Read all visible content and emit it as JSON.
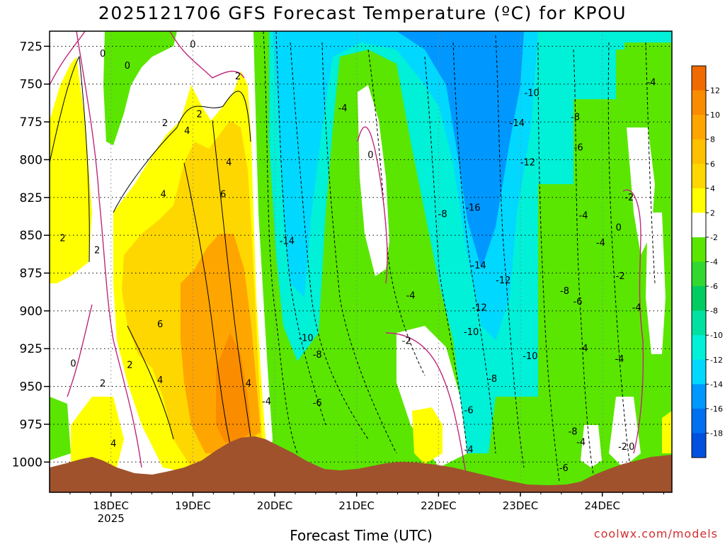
{
  "page": {
    "title": "2025121706 GFS Forecast Temperature (ºC) for KPOU",
    "xlabel": "Forecast Time (UTC)",
    "credit": "coolwx.com/models"
  },
  "chart_data": {
    "type": "heatmap",
    "title": "2025121706 GFS Forecast Temperature (ºC) for KPOU",
    "xlabel": "Forecast Time (UTC)",
    "ylabel": "",
    "y_axis": {
      "reversed": true,
      "range": [
        715,
        1020
      ],
      "ticks": [
        725,
        750,
        775,
        800,
        825,
        850,
        875,
        900,
        925,
        950,
        975,
        1000
      ],
      "grid": true
    },
    "x_axis": {
      "range": [
        -0.75,
        6.85
      ],
      "ticks": [
        {
          "value": 0,
          "label": "18DEC",
          "sublabel": "2025"
        },
        {
          "value": 1,
          "label": "19DEC"
        },
        {
          "value": 2,
          "label": "20DEC"
        },
        {
          "value": 3,
          "label": "21DEC"
        },
        {
          "value": 4,
          "label": "22DEC"
        },
        {
          "value": 5,
          "label": "23DEC"
        },
        {
          "value": 6,
          "label": "24DEC"
        }
      ],
      "grid": true
    },
    "colorbar": {
      "labels": [
        "12",
        "10",
        "8",
        "6",
        "4",
        "2",
        "-2",
        "-4",
        "-6",
        "-8",
        "-10",
        "-12",
        "-14",
        "-16",
        "-18"
      ],
      "colors": [
        "#f06a00",
        "#fa8c00",
        "#ffa500",
        "#ffc000",
        "#ffd700",
        "#ffff00",
        "#ffffff",
        "#5ae600",
        "#30d830",
        "#00cc60",
        "#00e0a0",
        "#00f0d8",
        "#00d8ff",
        "#0098ff",
        "#0070f0",
        "#0050e0"
      ]
    },
    "regions": [
      {
        "name": "warm-yellow-west",
        "color": "#ffff00"
      },
      {
        "name": "warm-gold-core",
        "color": "#ffd700"
      },
      {
        "name": "warm-orange-core",
        "color": "#ffa500"
      },
      {
        "name": "warm-deep-orange",
        "color": "#fa8c00"
      },
      {
        "name": "cold-green-band",
        "color": "#5ae600"
      },
      {
        "name": "cold-cyan",
        "color": "#00f0d8"
      },
      {
        "name": "cold-blue",
        "color": "#00d8ff"
      },
      {
        "name": "cold-deep-blue",
        "color": "#0098ff"
      },
      {
        "name": "terrain",
        "color": "#a0522d"
      }
    ],
    "contour_labels": [
      {
        "t": -0.1,
        "p": 730,
        "text": "0"
      },
      {
        "t": 0.2,
        "p": 738,
        "text": "0"
      },
      {
        "t": 1.0,
        "p": 724,
        "text": "0"
      },
      {
        "t": 1.55,
        "p": 745,
        "text": "2"
      },
      {
        "t": 0.66,
        "p": 776,
        "text": "2"
      },
      {
        "t": 1.08,
        "p": 770,
        "text": "2"
      },
      {
        "t": 0.93,
        "p": 781,
        "text": "4"
      },
      {
        "t": 1.44,
        "p": 802,
        "text": "4"
      },
      {
        "t": 0.64,
        "p": 823,
        "text": "4"
      },
      {
        "t": 1.37,
        "p": 823,
        "text": "6"
      },
      {
        "t": -0.59,
        "p": 852,
        "text": "2"
      },
      {
        "t": -0.17,
        "p": 860,
        "text": "2"
      },
      {
        "t": 0.6,
        "p": 909,
        "text": "6"
      },
      {
        "t": 0.23,
        "p": 936,
        "text": "2"
      },
      {
        "t": 0.6,
        "p": 946,
        "text": "4"
      },
      {
        "t": -0.46,
        "p": 935,
        "text": "0"
      },
      {
        "t": -0.1,
        "p": 948,
        "text": "2"
      },
      {
        "t": 0.03,
        "p": 988,
        "text": "4"
      },
      {
        "t": 1.68,
        "p": 948,
        "text": "4"
      },
      {
        "t": 2.15,
        "p": 854,
        "text": "-14"
      },
      {
        "t": 1.9,
        "p": 960,
        "text": "-4"
      },
      {
        "t": 2.38,
        "p": 918,
        "text": "-10"
      },
      {
        "t": 2.52,
        "p": 929,
        "text": "-8"
      },
      {
        "t": 2.52,
        "p": 961,
        "text": "-6"
      },
      {
        "t": 2.83,
        "p": 766,
        "text": "-4"
      },
      {
        "t": 3.17,
        "p": 797,
        "text": "0"
      },
      {
        "t": 3.66,
        "p": 890,
        "text": "-4"
      },
      {
        "t": 3.61,
        "p": 920,
        "text": "-2"
      },
      {
        "t": 4.05,
        "p": 836,
        "text": "-8"
      },
      {
        "t": 4.42,
        "p": 832,
        "text": "-16"
      },
      {
        "t": 4.49,
        "p": 870,
        "text": "-14"
      },
      {
        "t": 4.79,
        "p": 880,
        "text": "-12"
      },
      {
        "t": 4.5,
        "p": 898,
        "text": "-12"
      },
      {
        "t": 4.4,
        "p": 914,
        "text": "-10"
      },
      {
        "t": 4.66,
        "p": 945,
        "text": "-8"
      },
      {
        "t": 4.37,
        "p": 966,
        "text": "-6"
      },
      {
        "t": 4.37,
        "p": 992,
        "text": "-4"
      },
      {
        "t": 5.14,
        "p": 756,
        "text": "-10"
      },
      {
        "t": 4.96,
        "p": 776,
        "text": "-14"
      },
      {
        "t": 5.09,
        "p": 802,
        "text": "-12"
      },
      {
        "t": 5.67,
        "p": 772,
        "text": "-8"
      },
      {
        "t": 5.71,
        "p": 792,
        "text": "-6"
      },
      {
        "t": 5.77,
        "p": 837,
        "text": "-4"
      },
      {
        "t": 5.98,
        "p": 855,
        "text": "-4"
      },
      {
        "t": 5.54,
        "p": 887,
        "text": "-8"
      },
      {
        "t": 5.7,
        "p": 894,
        "text": "-6"
      },
      {
        "t": 5.12,
        "p": 930,
        "text": "-10"
      },
      {
        "t": 5.77,
        "p": 925,
        "text": "-4"
      },
      {
        "t": 6.6,
        "p": 749,
        "text": "-4"
      },
      {
        "t": 6.33,
        "p": 825,
        "text": "-2"
      },
      {
        "t": 6.2,
        "p": 845,
        "text": "0"
      },
      {
        "t": 6.22,
        "p": 877,
        "text": "-2"
      },
      {
        "t": 6.42,
        "p": 898,
        "text": "-4"
      },
      {
        "t": 6.21,
        "p": 932,
        "text": "-4"
      },
      {
        "t": 5.64,
        "p": 980,
        "text": "-8"
      },
      {
        "t": 5.74,
        "p": 987,
        "text": "-4"
      },
      {
        "t": 6.25,
        "p": 990,
        "text": "-2"
      },
      {
        "t": 6.36,
        "p": 990,
        "text": "0"
      },
      {
        "t": 5.53,
        "p": 1004,
        "text": "-6"
      }
    ]
  }
}
